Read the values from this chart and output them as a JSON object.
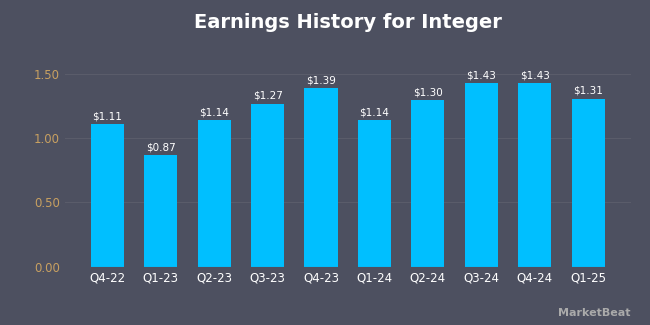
{
  "title": "Earnings History for Integer",
  "categories": [
    "Q4-22",
    "Q1-23",
    "Q2-23",
    "Q3-23",
    "Q4-23",
    "Q1-24",
    "Q2-24",
    "Q3-24",
    "Q4-24",
    "Q1-25"
  ],
  "values": [
    1.11,
    0.87,
    1.14,
    1.27,
    1.39,
    1.14,
    1.3,
    1.43,
    1.43,
    1.31
  ],
  "labels": [
    "$1.11",
    "$0.87",
    "$1.14",
    "$1.27",
    "$1.39",
    "$1.14",
    "$1.30",
    "$1.43",
    "$1.43",
    "$1.31"
  ],
  "bar_color": "#00BFFF",
  "background_color": "#4d5060",
  "grid_color": "#5a5c6a",
  "text_color": "#ffffff",
  "ytick_color": "#c8a060",
  "title_fontsize": 14,
  "label_fontsize": 7.5,
  "tick_fontsize": 8.5,
  "ylim": [
    0,
    1.75
  ],
  "yticks": [
    0.0,
    0.5,
    1.0,
    1.5
  ],
  "watermark": "MarketBeat"
}
